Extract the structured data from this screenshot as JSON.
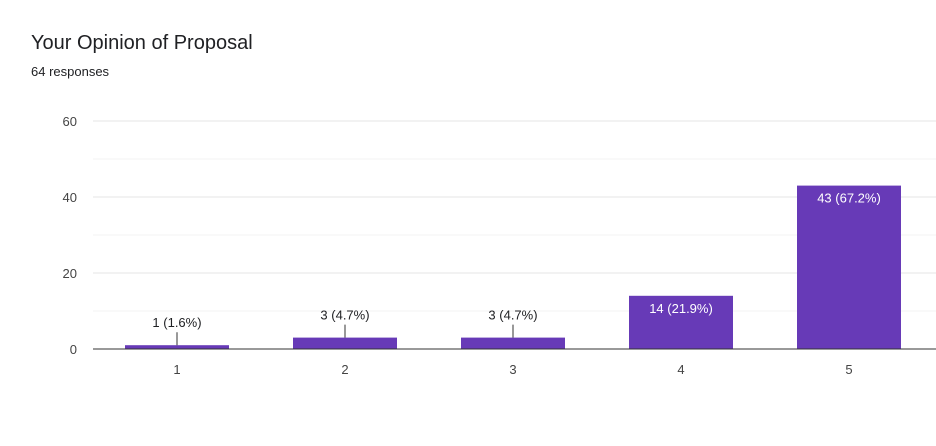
{
  "header": {
    "title": "Your Opinion of Proposal",
    "subtitle": "64 responses"
  },
  "colors": {
    "bar": "#673ab7",
    "axis": "#333333",
    "grid_major": "#e6e6e6",
    "grid_minor": "#f3f3f3",
    "label_outside": "#202124",
    "label_inside": "#ffffff"
  },
  "chart_data": {
    "type": "bar",
    "title": "Your Opinion of Proposal",
    "subtitle": "64 responses",
    "categories": [
      "1",
      "2",
      "3",
      "4",
      "5"
    ],
    "values": [
      1,
      3,
      3,
      14,
      43
    ],
    "data_labels": [
      "1 (1.6%)",
      "3 (4.7%)",
      "3 (4.7%)",
      "14 (21.9%)",
      "43 (67.2%)"
    ],
    "ylim": [
      0,
      60
    ],
    "yticks": [
      0,
      20,
      40,
      60
    ],
    "grid": true,
    "legend": "none"
  }
}
